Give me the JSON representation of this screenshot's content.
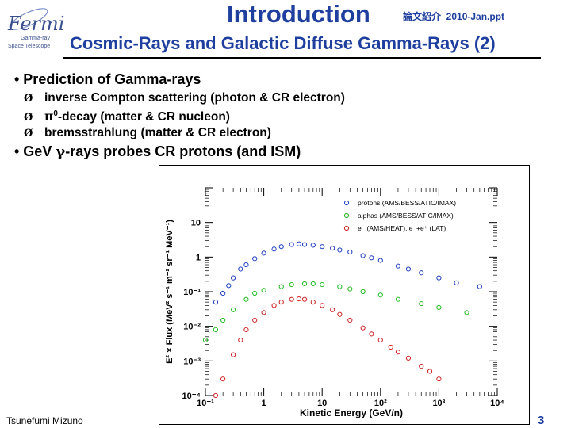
{
  "logo": {
    "name": "Fermi",
    "lines": [
      "Gamma-ray",
      "Space Telescope"
    ]
  },
  "header": {
    "title": "Introduction",
    "reference": "論文紹介_2010-Jan.ppt",
    "subtitle": "Cosmic-Rays and Galactic Diffuse Gamma-Rays (2)"
  },
  "bullets": {
    "b1": "• Prediction of Gamma-rays",
    "s1": "inverse Compton scattering (photon & CR electron)",
    "s2_pre": "π",
    "s2_sup": "0",
    "s2_post": "-decay (matter & CR nucleon)",
    "s3": "bremsstrahlung (matter & CR electron)",
    "b2_pre": "• GeV ",
    "b2_sym": "γ",
    "b2_post": "-rays probes CR protons (and ISM)",
    "arrow": "Ø"
  },
  "chart_data": {
    "type": "scatter",
    "xscale": "log",
    "yscale": "log",
    "xlim": [
      0.1,
      10000
    ],
    "ylim": [
      0.0001,
      100
    ],
    "xlabel": "Kinetic Energy (GeV/n)",
    "ylabel": "E² × Flux (MeV² s⁻¹ m⁻² sr⁻¹ MeV⁻¹)",
    "xticks": [
      "10⁻¹",
      "1",
      "10",
      "10²",
      "10³",
      "10⁴"
    ],
    "yticks": [
      "10",
      "1",
      "10⁻¹",
      "10⁻²",
      "10⁻³",
      "10⁻⁴"
    ],
    "legend_position": "top-right",
    "series": [
      {
        "name": "protons (AMS/BESS/ATIC/IMAX)",
        "color": "#1f3fbf",
        "x": [
          0.15,
          0.2,
          0.25,
          0.3,
          0.4,
          0.5,
          0.7,
          1,
          1.5,
          2,
          3,
          4,
          5,
          7,
          10,
          15,
          20,
          30,
          50,
          70,
          100,
          200,
          300,
          500,
          1000,
          2000,
          5000
        ],
        "y": [
          0.05,
          0.09,
          0.15,
          0.25,
          0.45,
          0.6,
          0.9,
          1.3,
          1.7,
          2.0,
          2.3,
          2.4,
          2.3,
          2.2,
          2.0,
          1.8,
          1.6,
          1.4,
          1.1,
          0.95,
          0.8,
          0.55,
          0.45,
          0.35,
          0.25,
          0.18,
          0.14
        ]
      },
      {
        "name": "alphas (AMS/BESS/ATIC/IMAX)",
        "color": "#22bb22",
        "x": [
          0.1,
          0.15,
          0.2,
          0.3,
          0.5,
          0.7,
          1,
          2,
          3,
          5,
          7,
          10,
          20,
          30,
          50,
          100,
          200,
          500,
          1000,
          3000
        ],
        "y": [
          0.004,
          0.008,
          0.015,
          0.03,
          0.06,
          0.09,
          0.11,
          0.14,
          0.16,
          0.17,
          0.17,
          0.16,
          0.14,
          0.12,
          0.1,
          0.08,
          0.06,
          0.045,
          0.035,
          0.025
        ]
      },
      {
        "name": "e⁻ (AMS/HEAT), e⁻+e⁺ (LAT)",
        "color": "#cc2222",
        "x": [
          0.15,
          0.2,
          0.3,
          0.4,
          0.5,
          0.7,
          1,
          1.5,
          2,
          3,
          4,
          5,
          7,
          10,
          15,
          20,
          30,
          50,
          70,
          100,
          150,
          200,
          300,
          500,
          700,
          1000
        ],
        "y": [
          0.0001,
          0.0003,
          0.0015,
          0.004,
          0.008,
          0.015,
          0.025,
          0.04,
          0.05,
          0.06,
          0.062,
          0.06,
          0.05,
          0.04,
          0.03,
          0.022,
          0.015,
          0.009,
          0.006,
          0.004,
          0.0025,
          0.0018,
          0.0012,
          0.0007,
          0.0005,
          0.0003
        ]
      }
    ]
  },
  "footer": {
    "author": "Tsunefumi Mizuno",
    "page": "3"
  }
}
